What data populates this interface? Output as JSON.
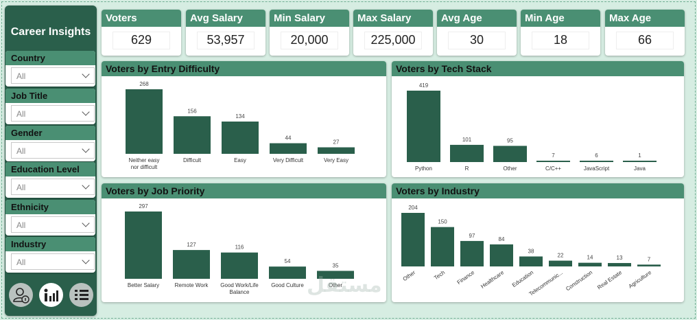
{
  "sidebar": {
    "title": "Career Insights",
    "slicers": [
      {
        "label": "Country",
        "value": "All"
      },
      {
        "label": "Job Title",
        "value": "All"
      },
      {
        "label": "Gender",
        "value": "All"
      },
      {
        "label": "Education Level",
        "value": "All"
      },
      {
        "label": "Ethnicity",
        "value": "All"
      },
      {
        "label": "Industry",
        "value": "All"
      }
    ],
    "nav_icons": [
      "user-info-icon",
      "bar-chart-person-icon",
      "list-filter-icon"
    ]
  },
  "kpis": [
    {
      "label": "Voters",
      "value": "629"
    },
    {
      "label": "Avg Salary",
      "value": "53,957"
    },
    {
      "label": "Min Salary",
      "value": "20,000"
    },
    {
      "label": "Max Salary",
      "value": "225,000"
    },
    {
      "label": "Avg Age",
      "value": "30"
    },
    {
      "label": "Min Age",
      "value": "18"
    },
    {
      "label": "Max Age",
      "value": "66"
    }
  ],
  "colors": {
    "bar": "#2a5f4b",
    "header": "#4a8f73",
    "sidebar": "#2a5f4b",
    "background": "#d6ede2"
  },
  "watermark": "مستقل",
  "chart_data": [
    {
      "type": "bar",
      "title": "Voters by Entry Difficulty",
      "categories": [
        "Neither easy nor difficult",
        "Difficult",
        "Easy",
        "Very Difficult",
        "Very Easy"
      ],
      "values": [
        268,
        156,
        134,
        44,
        27
      ]
    },
    {
      "type": "bar",
      "title": "Voters by Tech Stack",
      "categories": [
        "Python",
        "R",
        "Other",
        "C/C++",
        "JavaScript",
        "Java"
      ],
      "values": [
        419,
        101,
        95,
        7,
        6,
        1
      ]
    },
    {
      "type": "bar",
      "title": "Voters by Job Priority",
      "categories": [
        "Better Salary",
        "Remote Work",
        "Good Work/Life Balance",
        "Good Culture",
        "Other"
      ],
      "values": [
        297,
        127,
        116,
        54,
        35
      ]
    },
    {
      "type": "bar",
      "title": "Voters by Industry",
      "categories": [
        "Other",
        "Tech",
        "Finance",
        "Healthcare",
        "Education",
        "Telecommunic...",
        "Construction",
        "Real Estate",
        "Agriculture"
      ],
      "values": [
        204,
        150,
        97,
        84,
        38,
        22,
        14,
        13,
        7
      ]
    }
  ]
}
